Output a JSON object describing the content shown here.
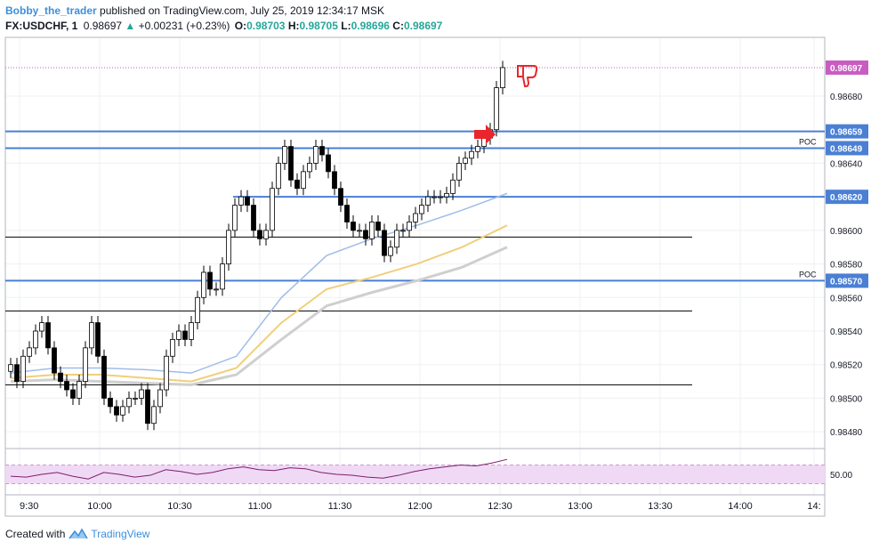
{
  "header": {
    "author": "Bobby_the_trader",
    "published": "published on TradingView.com, July 25, 2019 12:34:17 MSK",
    "symbol": "FX:USDCHF, 1",
    "last": "0.98697",
    "change": "+0.00231 (+0.23%)",
    "o_label": "O:",
    "o_value": "0.98703",
    "h_label": "H:",
    "h_value": "0.98705",
    "l_label": "L:",
    "l_value": "0.98696",
    "c_label": "C:",
    "c_value": "0.98697"
  },
  "footer": {
    "created_with": "Created with",
    "brand": "TradingView"
  },
  "colors": {
    "level": "#4a7fd4",
    "ma_fast": "#9fbde8",
    "ma_mid": "#f0cf7a",
    "ma_slow": "#cfcfcf",
    "rsi": "#7b1f6b",
    "rsi_band": "#f0d9f5",
    "current_price_tag": "#c85cc1",
    "arrow": "#e8262b"
  },
  "chart_data": {
    "type": "candlestick",
    "symbol": "FX:USDCHF",
    "timeframe": "1",
    "ylim": [
      0.9847,
      0.98715
    ],
    "y_ticks": [
      "0.98680",
      "0.98640",
      "0.98600",
      "0.98580",
      "0.98560",
      "0.98540",
      "0.98520",
      "0.98500",
      "0.98480"
    ],
    "x_ticks": [
      "9:30",
      "10:00",
      "10:30",
      "11:00",
      "11:30",
      "12:00",
      "12:30",
      "13:00",
      "13:30",
      "14:00",
      "14:"
    ],
    "price_tags": [
      {
        "label": "0.98697",
        "value": 0.98697,
        "kind": "current"
      },
      {
        "label": "0.98659",
        "value": 0.98659,
        "kind": "level"
      },
      {
        "label": "0.98649",
        "value": 0.98649,
        "kind": "level"
      },
      {
        "label": "0.98620",
        "value": 0.9862,
        "kind": "level"
      },
      {
        "label": "0.98570",
        "value": 0.9857,
        "kind": "level"
      }
    ],
    "poc_labels": [
      {
        "text": "POC",
        "value": 0.98649
      },
      {
        "text": "POC",
        "value": 0.9857
      }
    ],
    "black_levels": [
      0.98596,
      0.98552,
      0.98508
    ],
    "candles_close": [
      0.9852,
      0.9851,
      0.98525,
      0.9853,
      0.9854,
      0.98545,
      0.9853,
      0.98515,
      0.9851,
      0.98505,
      0.985,
      0.9851,
      0.9853,
      0.98545,
      0.98525,
      0.985,
      0.98495,
      0.9849,
      0.98495,
      0.985,
      0.985,
      0.98505,
      0.98485,
      0.98495,
      0.98505,
      0.98525,
      0.98535,
      0.9854,
      0.98535,
      0.98545,
      0.9856,
      0.98575,
      0.98565,
      0.98565,
      0.9858,
      0.986,
      0.98615,
      0.9862,
      0.98615,
      0.986,
      0.98595,
      0.986,
      0.98625,
      0.9864,
      0.9865,
      0.9863,
      0.98625,
      0.98635,
      0.9864,
      0.9865,
      0.98645,
      0.98635,
      0.98625,
      0.98615,
      0.98605,
      0.986,
      0.986,
      0.98595,
      0.98605,
      0.986,
      0.98585,
      0.9859,
      0.986,
      0.986,
      0.98605,
      0.9861,
      0.98615,
      0.9862,
      0.9862,
      0.9862,
      0.98622,
      0.9863,
      0.9864,
      0.98643,
      0.98647,
      0.9865,
      0.98655,
      0.9866,
      0.98685,
      0.98697
    ],
    "ma_fast": [
      0.98515,
      0.98518,
      0.98518,
      0.98517,
      0.98515,
      0.98525,
      0.9856,
      0.98585,
      0.98595,
      0.98603,
      0.98612,
      0.98622
    ],
    "ma_mid": [
      0.98512,
      0.98514,
      0.98514,
      0.98512,
      0.9851,
      0.98518,
      0.98545,
      0.98565,
      0.98572,
      0.9858,
      0.9859,
      0.98603
    ],
    "ma_slow": [
      0.9851,
      0.98511,
      0.9851,
      0.98509,
      0.98508,
      0.98514,
      0.98535,
      0.98555,
      0.98563,
      0.9857,
      0.98578,
      0.9859
    ],
    "rsi_label": "50.00",
    "rsi": [
      48,
      47,
      50,
      52,
      48,
      45,
      52,
      50,
      47,
      49,
      55,
      53,
      50,
      52,
      56,
      58,
      55,
      54,
      57,
      56,
      52,
      50,
      49,
      47,
      46,
      49,
      53,
      56,
      58,
      60,
      59,
      62,
      66
    ]
  }
}
